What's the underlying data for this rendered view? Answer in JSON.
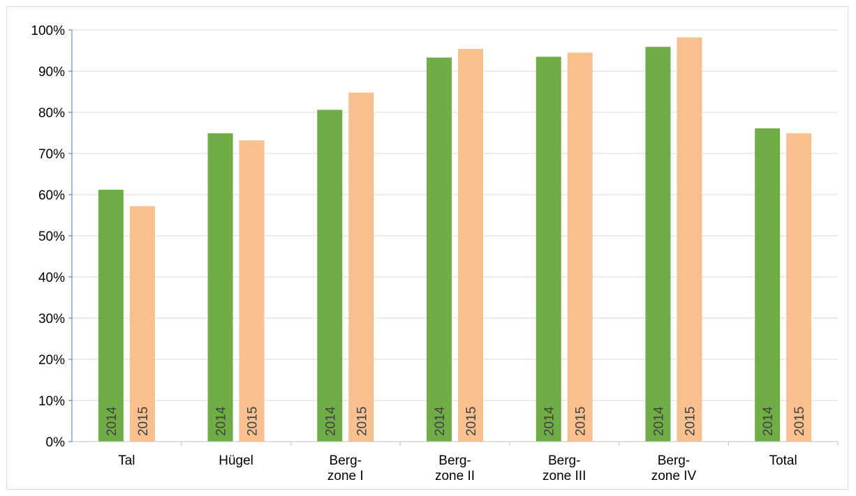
{
  "chart_data": {
    "type": "bar",
    "title": "",
    "xlabel": "",
    "ylabel": "",
    "ylim": [
      0,
      100
    ],
    "y_ticks": [
      0,
      10,
      20,
      30,
      40,
      50,
      60,
      70,
      80,
      90,
      100
    ],
    "y_tick_labels": [
      "0%",
      "10%",
      "20%",
      "30%",
      "40%",
      "50%",
      "60%",
      "70%",
      "80%",
      "90%",
      "100%"
    ],
    "categories": [
      [
        "Tal"
      ],
      [
        "Hügel"
      ],
      [
        "Berg-",
        "zone I"
      ],
      [
        "Berg-",
        "zone II"
      ],
      [
        "Berg-",
        "zone III"
      ],
      [
        "Berg-",
        "zone IV"
      ],
      [
        "Total"
      ]
    ],
    "series": [
      {
        "label": "2014",
        "color": "#70ad47",
        "values": [
          61.2,
          74.9,
          80.6,
          93.3,
          93.5,
          95.9,
          76.1
        ]
      },
      {
        "label": "2015",
        "color": "#f8c08f",
        "values": [
          57.2,
          73.2,
          84.8,
          95.4,
          94.5,
          98.2,
          74.9
        ]
      }
    ],
    "grid": true,
    "legend": "none"
  }
}
